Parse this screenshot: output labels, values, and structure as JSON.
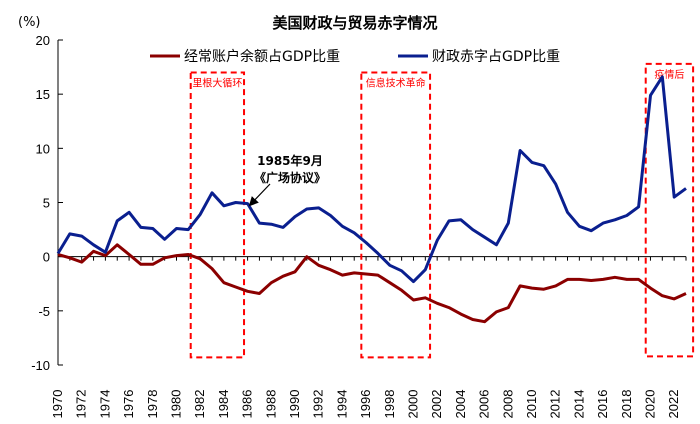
{
  "chart_data": {
    "type": "line",
    "title": "美国财政与贸易赤字情况",
    "unit_label": "(%)",
    "xlim": [
      1970,
      2023
    ],
    "ylim": [
      -10,
      20
    ],
    "yticks": [
      20,
      15,
      10,
      5,
      0,
      -5,
      -10
    ],
    "xticks": [
      1970,
      1972,
      1974,
      1976,
      1978,
      1980,
      1982,
      1984,
      1986,
      1988,
      1990,
      1992,
      1994,
      1996,
      1998,
      2000,
      2002,
      2004,
      2006,
      2008,
      2010,
      2012,
      2014,
      2016,
      2018,
      2020,
      2022
    ],
    "series": [
      {
        "name": "经常账户余额占GDP比重",
        "color": "#8b0000",
        "x": [
          1970,
          1971,
          1972,
          1973,
          1974,
          1975,
          1976,
          1977,
          1978,
          1979,
          1980,
          1981,
          1982,
          1983,
          1984,
          1985,
          1986,
          1987,
          1988,
          1989,
          1990,
          1991,
          1992,
          1993,
          1994,
          1995,
          1996,
          1997,
          1998,
          1999,
          2000,
          2001,
          2002,
          2003,
          2004,
          2005,
          2006,
          2007,
          2008,
          2009,
          2010,
          2011,
          2012,
          2013,
          2014,
          2015,
          2016,
          2017,
          2018,
          2019,
          2020,
          2021,
          2022,
          2023
        ],
        "values": [
          0.2,
          -0.1,
          -0.5,
          0.5,
          0.1,
          1.1,
          0.2,
          -0.7,
          -0.7,
          -0.1,
          0.1,
          0.2,
          -0.2,
          -1.1,
          -2.4,
          -2.8,
          -3.2,
          -3.4,
          -2.4,
          -1.8,
          -1.4,
          0.0,
          -0.8,
          -1.2,
          -1.7,
          -1.5,
          -1.6,
          -1.7,
          -2.4,
          -3.1,
          -4.0,
          -3.8,
          -4.3,
          -4.7,
          -5.3,
          -5.8,
          -6.0,
          -5.1,
          -4.7,
          -2.7,
          -2.9,
          -3.0,
          -2.7,
          -2.1,
          -2.1,
          -2.2,
          -2.1,
          -1.9,
          -2.1,
          -2.1,
          -2.9,
          -3.6,
          -3.9,
          -3.4
        ]
      },
      {
        "name": "财政赤字占GDP比重",
        "color": "#0a1f8f",
        "x": [
          1970,
          1971,
          1972,
          1973,
          1974,
          1975,
          1976,
          1977,
          1978,
          1979,
          1980,
          1981,
          1982,
          1983,
          1984,
          1985,
          1986,
          1987,
          1988,
          1989,
          1990,
          1991,
          1992,
          1993,
          1994,
          1995,
          1996,
          1997,
          1998,
          1999,
          2000,
          2001,
          2002,
          2003,
          2004,
          2005,
          2006,
          2007,
          2008,
          2009,
          2010,
          2011,
          2012,
          2013,
          2014,
          2015,
          2016,
          2017,
          2018,
          2019,
          2020,
          2021,
          2022,
          2023
        ],
        "values": [
          0.3,
          2.1,
          1.9,
          1.1,
          0.4,
          3.3,
          4.1,
          2.7,
          2.6,
          1.6,
          2.6,
          2.5,
          3.9,
          5.9,
          4.7,
          5.0,
          4.9,
          3.1,
          3.0,
          2.7,
          3.7,
          4.4,
          4.5,
          3.8,
          2.8,
          2.2,
          1.3,
          0.3,
          -0.8,
          -1.3,
          -2.3,
          -1.2,
          1.5,
          3.3,
          3.4,
          2.5,
          1.8,
          1.1,
          3.1,
          9.8,
          8.7,
          8.4,
          6.7,
          4.1,
          2.8,
          2.4,
          3.1,
          3.4,
          3.8,
          4.6,
          14.9,
          16.6,
          5.5,
          6.3
        ]
      }
    ],
    "highlight_boxes": [
      {
        "label": "里根大循环",
        "from": 1981.2,
        "to": 1985.7,
        "ymax": 17,
        "ymin": -9.3
      },
      {
        "label": "信息技术革命",
        "from": 1995.6,
        "to": 2001.4,
        "ymax": 17,
        "ymin": -9.3
      },
      {
        "label": "疫情后",
        "from": 2019.6,
        "to": 2023.6,
        "ymax": 17.8,
        "ymin": -9.2
      }
    ],
    "annotation": {
      "line1": "1985年9月",
      "line2": "《广场协议》",
      "target_x": 1985.9,
      "target_y": 4.9
    },
    "legend_position": "top"
  }
}
